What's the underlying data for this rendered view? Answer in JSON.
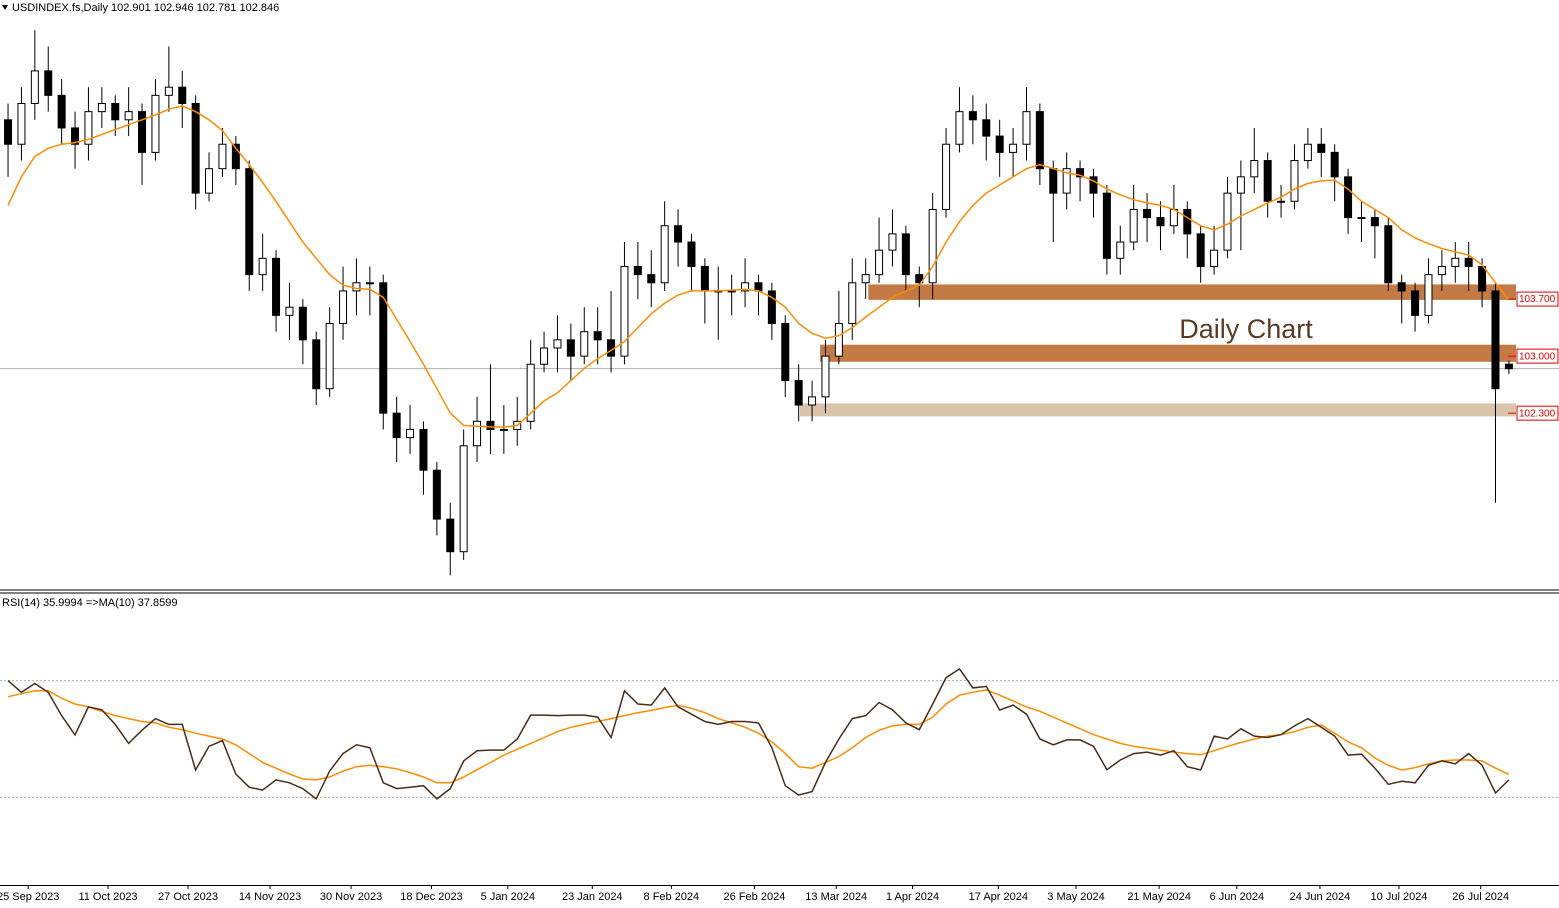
{
  "chart_data": [
    {
      "type": "candlestick",
      "title": "USDINDEX.fs,Daily  102.901 102.946 102.781 102.846",
      "annotation": "Daily Chart",
      "xlim": [
        -0.6,
        115.74
      ],
      "ylim": [
        100.13,
        107.37
      ],
      "open": [
        105.9,
        105.6,
        106.1,
        106.5,
        106.2,
        105.8,
        105.6,
        106.0,
        106.1,
        105.9,
        106.0,
        105.5,
        106.2,
        106.3,
        106.1,
        105.0,
        105.3,
        105.6,
        105.3,
        104.0,
        104.2,
        103.5,
        103.6,
        103.2,
        102.6,
        103.4,
        103.8,
        103.9,
        103.9,
        102.3,
        102.0,
        102.1,
        101.6,
        101.0,
        100.6,
        101.9,
        102.2,
        102.1,
        102.1,
        102.2,
        102.9,
        103.1,
        103.2,
        103.0,
        103.3,
        103.2,
        103.0,
        104.1,
        104.0,
        103.9,
        104.6,
        104.4,
        104.1,
        103.8,
        103.8,
        103.8,
        103.9,
        103.8,
        103.4,
        102.7,
        102.4,
        102.5,
        103.0,
        103.4,
        103.9,
        104.0,
        104.3,
        104.5,
        104.0,
        103.9,
        104.8,
        105.6,
        106.0,
        105.9,
        105.7,
        105.5,
        105.6,
        106.0,
        105.3,
        105.0,
        105.3,
        105.2,
        105.0,
        104.2,
        104.4,
        104.8,
        104.7,
        104.6,
        104.8,
        104.5,
        104.1,
        104.3,
        105.0,
        105.2,
        105.4,
        104.9,
        104.9,
        105.4,
        105.6,
        105.5,
        105.2,
        104.7,
        104.7,
        104.6,
        103.9,
        103.8,
        103.5,
        104.0,
        104.1,
        104.2,
        104.1,
        103.8,
        102.901
      ],
      "high": [
        106.1,
        106.3,
        107.0,
        106.8,
        106.4,
        106.0,
        106.3,
        106.3,
        106.2,
        106.3,
        106.1,
        106.4,
        106.8,
        106.5,
        106.2,
        105.5,
        105.8,
        105.7,
        105.4,
        104.5,
        104.3,
        103.9,
        103.7,
        103.3,
        103.6,
        104.1,
        104.2,
        104.1,
        104.0,
        102.5,
        102.4,
        102.2,
        101.7,
        101.2,
        102.1,
        102.5,
        102.9,
        102.4,
        102.5,
        103.2,
        103.3,
        103.5,
        103.4,
        103.6,
        103.6,
        103.8,
        104.4,
        104.4,
        104.3,
        104.9,
        104.8,
        104.5,
        104.2,
        104.1,
        104.0,
        104.2,
        104.0,
        103.9,
        103.5,
        102.9,
        102.7,
        103.2,
        103.8,
        104.2,
        104.2,
        104.7,
        104.8,
        104.6,
        104.1,
        105.0,
        105.8,
        106.3,
        106.2,
        106.1,
        105.9,
        105.8,
        106.3,
        106.1,
        105.4,
        105.5,
        105.4,
        105.3,
        105.1,
        104.6,
        105.1,
        105.0,
        104.9,
        105.1,
        104.9,
        104.6,
        104.6,
        105.2,
        105.4,
        105.8,
        105.5,
        105.1,
        105.6,
        105.8,
        105.8,
        105.6,
        105.3,
        104.9,
        104.8,
        104.7,
        104.0,
        103.9,
        104.2,
        104.3,
        104.4,
        104.4,
        104.2,
        103.9,
        102.946
      ],
      "low": [
        105.2,
        105.4,
        105.9,
        106.0,
        105.6,
        105.3,
        105.4,
        105.8,
        105.7,
        105.7,
        105.1,
        105.4,
        106.0,
        105.8,
        104.8,
        104.9,
        105.2,
        105.1,
        103.8,
        103.8,
        103.3,
        103.2,
        102.9,
        102.4,
        102.5,
        103.2,
        103.5,
        103.5,
        102.1,
        101.7,
        101.8,
        101.3,
        100.8,
        100.31,
        100.5,
        101.7,
        101.8,
        101.8,
        101.9,
        102.1,
        102.8,
        102.8,
        102.7,
        102.9,
        102.9,
        102.8,
        102.9,
        103.7,
        103.6,
        103.8,
        104.1,
        103.8,
        103.4,
        103.2,
        103.5,
        103.6,
        103.5,
        103.2,
        102.5,
        102.2,
        102.2,
        102.3,
        102.9,
        103.2,
        103.7,
        103.9,
        104.1,
        103.8,
        103.6,
        103.7,
        104.7,
        105.5,
        105.6,
        105.4,
        105.2,
        105.2,
        105.4,
        105.1,
        104.4,
        104.8,
        104.9,
        104.7,
        104.0,
        104.0,
        104.3,
        104.4,
        104.3,
        104.5,
        104.2,
        103.9,
        104.0,
        104.2,
        104.3,
        105.0,
        104.7,
        104.7,
        104.8,
        105.3,
        105.2,
        104.9,
        104.5,
        104.4,
        104.2,
        103.8,
        103.4,
        103.3,
        103.4,
        103.8,
        103.9,
        103.8,
        103.6,
        101.2,
        102.781
      ],
      "close": [
        105.6,
        106.1,
        106.5,
        106.2,
        105.8,
        105.6,
        106.0,
        106.1,
        105.9,
        106.0,
        105.5,
        106.2,
        106.3,
        106.1,
        105.0,
        105.3,
        105.6,
        105.3,
        104.0,
        104.2,
        103.5,
        103.6,
        103.2,
        102.6,
        103.4,
        103.8,
        103.9,
        103.9,
        102.3,
        102.0,
        102.1,
        101.6,
        101.0,
        100.6,
        101.9,
        102.2,
        102.1,
        102.1,
        102.2,
        102.9,
        103.1,
        103.2,
        103.0,
        103.3,
        103.2,
        103.0,
        104.1,
        104.0,
        103.9,
        104.6,
        104.4,
        104.1,
        103.8,
        103.8,
        103.8,
        103.9,
        103.8,
        103.4,
        102.7,
        102.4,
        102.5,
        103.0,
        103.4,
        103.9,
        104.0,
        104.3,
        104.5,
        104.0,
        103.9,
        104.8,
        105.6,
        106.0,
        105.9,
        105.7,
        105.5,
        105.6,
        106.0,
        105.3,
        105.0,
        105.3,
        105.2,
        105.0,
        104.2,
        104.4,
        104.8,
        104.7,
        104.6,
        104.8,
        104.5,
        104.1,
        104.3,
        105.0,
        105.2,
        105.4,
        104.9,
        104.9,
        105.4,
        105.6,
        105.5,
        105.2,
        104.7,
        104.7,
        104.6,
        103.9,
        103.8,
        103.5,
        104.0,
        104.1,
        104.2,
        104.1,
        103.8,
        102.6,
        102.846
      ],
      "series": [
        {
          "color": "#ff8c00",
          "values": [
            104.85,
            105.2,
            105.45,
            105.55,
            105.6,
            105.62,
            105.66,
            105.72,
            105.78,
            105.84,
            105.9,
            105.96,
            106.03,
            106.07,
            106.0,
            105.9,
            105.77,
            105.55,
            105.35,
            105.13,
            104.9,
            104.65,
            104.4,
            104.2,
            104.0,
            103.87,
            103.83,
            103.82,
            103.72,
            103.45,
            103.18,
            102.9,
            102.6,
            102.3,
            102.15,
            102.14,
            102.13,
            102.13,
            102.15,
            102.3,
            102.45,
            102.55,
            102.7,
            102.85,
            102.97,
            103.07,
            103.18,
            103.35,
            103.52,
            103.65,
            103.75,
            103.8,
            103.8,
            103.8,
            103.81,
            103.82,
            103.8,
            103.72,
            103.6,
            103.4,
            103.28,
            103.22,
            103.25,
            103.35,
            103.48,
            103.6,
            103.72,
            103.8,
            103.87,
            104.1,
            104.4,
            104.65,
            104.85,
            105.0,
            105.1,
            105.2,
            105.3,
            105.35,
            105.3,
            105.25,
            105.22,
            105.15,
            105.05,
            104.98,
            104.92,
            104.88,
            104.85,
            104.8,
            104.7,
            104.6,
            104.55,
            104.62,
            104.72,
            104.8,
            104.88,
            104.95,
            105.05,
            105.12,
            105.15,
            105.16,
            105.05,
            104.9,
            104.8,
            104.7,
            104.55,
            104.45,
            104.38,
            104.32,
            104.28,
            104.24,
            104.12,
            103.9,
            103.69
          ]
        }
      ],
      "zones": [
        {
          "from": 64.2,
          "low": 103.69,
          "high": 103.88,
          "color": "#c47a45"
        },
        {
          "from": 60.6,
          "low": 102.93,
          "high": 103.14,
          "color": "#c47a45"
        },
        {
          "from": 59.1,
          "low": 102.26,
          "high": 102.42,
          "color": "#dcc3ab"
        }
      ],
      "levels": [
        {
          "value": 103.7,
          "label": "103.700"
        },
        {
          "value": 103.0,
          "label": "103.000"
        },
        {
          "value": 102.3,
          "label": "102.300"
        }
      ]
    },
    {
      "type": "line",
      "title": "RSI(14) 35.9994  =>MA(10) 37.8599",
      "xlim": [
        -0.6,
        115.74
      ],
      "ylim": [
        0,
        100
      ],
      "levels": [
        70,
        30
      ],
      "series": [
        {
          "color": "#4a2c17",
          "values": [
            70,
            66,
            69,
            66,
            58,
            51.4,
            61,
            60,
            55,
            48.5,
            53,
            57,
            55,
            55,
            39.4,
            47.5,
            49.5,
            38,
            33.5,
            32.5,
            36,
            35,
            33,
            29.5,
            39,
            45,
            48,
            47,
            35,
            33,
            33.5,
            34,
            29.5,
            33,
            42.5,
            46,
            46.2,
            46.2,
            50,
            58.2,
            58.2,
            58,
            58.2,
            58.2,
            57.5,
            50.5,
            66.5,
            62,
            61.6,
            67.5,
            61,
            58.5,
            56,
            55,
            56,
            56,
            55.5,
            47,
            34,
            30.8,
            32,
            42,
            50,
            57,
            58,
            62.5,
            60,
            55.5,
            53.2,
            62,
            71,
            74,
            67.5,
            68,
            59.9,
            61.6,
            58.5,
            50,
            48,
            49.7,
            49.7,
            47.5,
            39.5,
            42.8,
            45,
            45.5,
            44.5,
            46,
            40.5,
            39.4,
            51,
            50,
            53.5,
            51,
            50.5,
            51.5,
            54.5,
            57,
            54,
            51,
            44.5,
            44.8,
            40,
            34.5,
            35.5,
            35,
            41,
            42.5,
            41.5,
            45,
            41,
            31.5,
            36
          ]
        },
        {
          "color": "#ff8c00",
          "values": [
            64.5,
            65.5,
            66.5,
            66.5,
            64,
            62,
            61,
            59.5,
            58,
            57,
            56,
            55.5,
            54,
            53.2,
            52,
            51,
            50,
            48,
            45,
            42,
            40,
            38,
            36.3,
            36,
            37,
            39,
            40.5,
            41,
            40.5,
            39.8,
            38.5,
            37,
            35,
            35,
            37,
            39.5,
            42,
            44.5,
            46.5,
            48.5,
            50.5,
            52.5,
            54,
            55,
            56,
            57,
            58,
            59,
            59.8,
            60.8,
            61.5,
            60.5,
            59,
            57,
            55.5,
            54,
            52,
            49,
            45,
            40.5,
            40,
            42,
            44,
            47,
            50.5,
            53,
            54.5,
            55,
            55,
            57.5,
            62,
            65,
            66,
            66.8,
            65,
            63,
            61,
            59.5,
            57.5,
            55.5,
            53.5,
            51.5,
            50,
            48.5,
            47.5,
            46.8,
            46.2,
            45.5,
            45,
            44.6,
            46,
            47.5,
            48.8,
            50,
            51,
            51.5,
            52.5,
            54,
            54.8,
            52,
            49,
            47,
            43.5,
            41,
            39.4,
            40.2,
            41.5,
            42.5,
            42.8,
            42.8,
            42.5,
            40,
            37.86
          ]
        }
      ],
      "xticks": [
        {
          "value": 1.5,
          "label": "25 Sep 2023"
        },
        {
          "value": 7.46,
          "label": "11 Oct 2023"
        },
        {
          "value": 13.43,
          "label": "27 Oct 2023"
        },
        {
          "value": 19.55,
          "label": "14 Nov 2023"
        },
        {
          "value": 25.6,
          "label": "30 Nov 2023"
        },
        {
          "value": 31.6,
          "label": "18 Dec 2023"
        },
        {
          "value": 37.3,
          "label": "5 Jan 2024"
        },
        {
          "value": 43.6,
          "label": "23 Jan 2024"
        },
        {
          "value": 49.5,
          "label": "8 Feb 2024"
        },
        {
          "value": 55.7,
          "label": "26 Feb 2024"
        },
        {
          "value": 61.8,
          "label": "13 Mar 2024"
        },
        {
          "value": 67.5,
          "label": "1 Apr 2024"
        },
        {
          "value": 73.9,
          "label": "17 Apr 2024"
        },
        {
          "value": 79.7,
          "label": "3 May 2024"
        },
        {
          "value": 85.9,
          "label": "21 May 2024"
        },
        {
          "value": 91.7,
          "label": "6 Jun 2024"
        },
        {
          "value": 97.9,
          "label": "24 Jun 2024"
        },
        {
          "value": 103.8,
          "label": "10 Jul 2024"
        },
        {
          "value": 109.9,
          "label": "26 Jul 2024"
        }
      ]
    }
  ]
}
